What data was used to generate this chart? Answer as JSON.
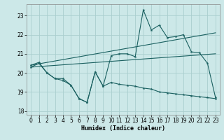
{
  "xlabel": "Humidex (Indice chaleur)",
  "bg_color": "#cce8e8",
  "grid_color": "#aacece",
  "line_color": "#1a6060",
  "xlim": [
    -0.5,
    23.5
  ],
  "ylim": [
    17.8,
    23.6
  ],
  "yticks": [
    18,
    19,
    20,
    21,
    22,
    23
  ],
  "xticks": [
    0,
    1,
    2,
    3,
    4,
    5,
    6,
    7,
    8,
    9,
    10,
    11,
    12,
    13,
    14,
    15,
    16,
    17,
    18,
    19,
    20,
    21,
    22,
    23
  ],
  "line_upper_x": [
    0,
    1,
    2,
    3,
    4,
    5,
    6,
    7,
    8,
    9,
    10,
    11,
    12,
    13,
    14,
    15,
    16,
    17,
    18,
    19,
    20,
    21,
    22,
    23
  ],
  "line_upper_y": [
    20.4,
    20.55,
    20.0,
    19.7,
    19.7,
    19.35,
    18.65,
    18.45,
    20.05,
    19.3,
    20.9,
    21.0,
    21.0,
    20.85,
    23.3,
    22.25,
    22.5,
    21.85,
    21.9,
    22.0,
    21.1,
    21.05,
    20.5,
    18.7
  ],
  "line_trend1_x": [
    0,
    23
  ],
  "line_trend1_y": [
    20.4,
    22.1
  ],
  "line_trend2_x": [
    0,
    23
  ],
  "line_trend2_y": [
    20.3,
    21.0
  ],
  "line_lower_x": [
    0,
    1,
    2,
    3,
    4,
    5,
    6,
    7,
    8,
    9,
    10,
    11,
    12,
    13,
    14,
    15,
    16,
    17,
    18,
    19,
    20,
    21,
    22,
    23
  ],
  "line_lower_y": [
    20.3,
    20.5,
    20.0,
    19.7,
    19.6,
    19.35,
    18.65,
    18.45,
    20.05,
    19.3,
    19.5,
    19.4,
    19.35,
    19.3,
    19.2,
    19.15,
    19.0,
    18.95,
    18.9,
    18.85,
    18.8,
    18.75,
    18.7,
    18.65
  ]
}
